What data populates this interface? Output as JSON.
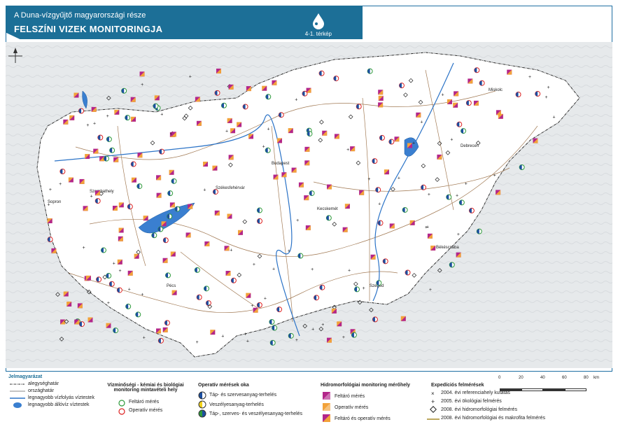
{
  "header": {
    "subtitle": "A Duna-vízgyűjtő magyarországi része",
    "title": "FELSZÍNI VIZEK MONITORINGJA",
    "map_number": "4-1. térkép"
  },
  "map": {
    "place_labels": [
      "Sopron",
      "Szombathely",
      "Székesfehérvár",
      "Kecskemét",
      "Debrecen",
      "Budapest",
      "Szeged",
      "Pécs",
      "Miskolc",
      "Békéscsaba"
    ],
    "colors": {
      "water": "#2b73c7",
      "country": "#e9ecee",
      "river": "#8b5a2b"
    }
  },
  "legend": {
    "title": "Jelmagyarázat",
    "boundaries": [
      "alegységhatár",
      "országhatár",
      "legnagyobb vízfolyás víztestek",
      "legnagyobb állóvíz víztestek"
    ],
    "sampling": {
      "heading": "Vízminőségi - kémiai és biológiai monitoring mintavételi hely",
      "items": [
        "Feltáró mérés",
        "Operatív mérés"
      ]
    },
    "operative": {
      "heading": "Operatív mérések oka",
      "items": [
        "Táp- és szervesanyag-terhelés",
        "Veszélyesanyag-terhelés",
        "Táp-, szerves- és veszélyesanyag-terhelés"
      ]
    },
    "hydromorph": {
      "heading": "Hidromorfológiai monitoring mérőhely",
      "items": [
        "Feltáró mérés",
        "Operatív mérés",
        "Feltáró és operatív mérés"
      ]
    },
    "expedition": {
      "heading": "Expedíciós felmérések",
      "items": [
        "2004. évi referenciahely kutatás",
        "2005. évi ökológiai felmérés",
        "2008. évi hidromorfológiai felmérés",
        "2008. évi hidromorfológiai és makrofita felmérés"
      ]
    },
    "scale": {
      "ticks": [
        "0",
        "20",
        "40",
        "60",
        "80"
      ],
      "unit": "km"
    }
  }
}
